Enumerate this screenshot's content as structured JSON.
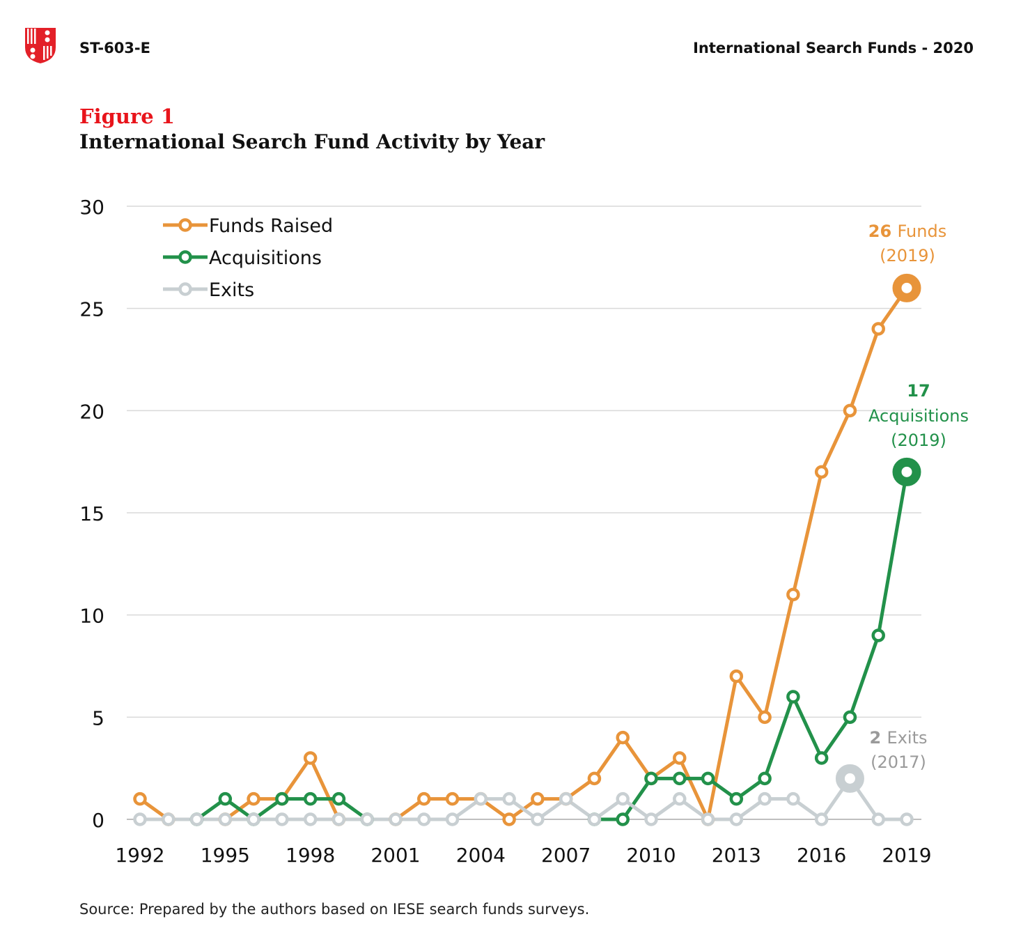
{
  "header": {
    "code": "ST-603-E",
    "title": "International Search Funds - 2020",
    "logo": "shield-logo"
  },
  "figure": {
    "label": "Figure 1",
    "title": "International Search Fund Activity by Year"
  },
  "source": "Source: Prepared by the authors based on IESE search funds surveys.",
  "colors": {
    "funds": "#e8943a",
    "acq": "#22914a",
    "exits": "#c8cfd2",
    "grid": "#d9d9d9"
  },
  "chart_data": {
    "type": "line",
    "title": "International Search Fund Activity by Year",
    "x": [
      1992,
      1993,
      1994,
      1995,
      1996,
      1997,
      1998,
      1999,
      2000,
      2001,
      2002,
      2003,
      2004,
      2005,
      2006,
      2007,
      2008,
      2009,
      2010,
      2011,
      2012,
      2013,
      2014,
      2015,
      2016,
      2017,
      2018,
      2019
    ],
    "xticks": [
      "1992",
      "1995",
      "1998",
      "2001",
      "2004",
      "2007",
      "2010",
      "2013",
      "2016",
      "2019"
    ],
    "yticks": [
      "0",
      "5",
      "10",
      "15",
      "20",
      "25",
      "30"
    ],
    "ylim": [
      0,
      30
    ],
    "grid": true,
    "legend_position": "top-left",
    "series": [
      {
        "name": "Funds Raised",
        "key": "funds",
        "values": [
          1,
          0,
          null,
          0,
          1,
          1,
          3,
          0,
          null,
          0,
          1,
          1,
          1,
          0,
          1,
          1,
          2,
          4,
          2,
          3,
          0,
          7,
          5,
          11,
          17,
          20,
          24,
          26
        ]
      },
      {
        "name": "Acquisitions",
        "key": "acq",
        "values": [
          null,
          null,
          0,
          1,
          0,
          1,
          1,
          1,
          0,
          null,
          null,
          null,
          null,
          null,
          null,
          null,
          0,
          0,
          2,
          2,
          2,
          1,
          2,
          6,
          3,
          5,
          9,
          17
        ]
      },
      {
        "name": "Exits",
        "key": "exits",
        "values": [
          0,
          0,
          0,
          0,
          0,
          0,
          0,
          0,
          0,
          0,
          0,
          0,
          1,
          1,
          0,
          1,
          0,
          1,
          0,
          1,
          0,
          0,
          1,
          1,
          0,
          2,
          0,
          0
        ]
      }
    ],
    "annotations": [
      {
        "series": "funds",
        "year": 2019,
        "value": 26,
        "bold": "26",
        "text": "Funds",
        "sub": "(2019)"
      },
      {
        "series": "acq",
        "year": 2019,
        "value": 17,
        "bold": "17",
        "text": "Acquisitions",
        "sub": "(2019)"
      },
      {
        "series": "exits",
        "year": 2017,
        "value": 2,
        "bold": "2",
        "text": "Exits",
        "sub": "(2017)"
      }
    ]
  }
}
